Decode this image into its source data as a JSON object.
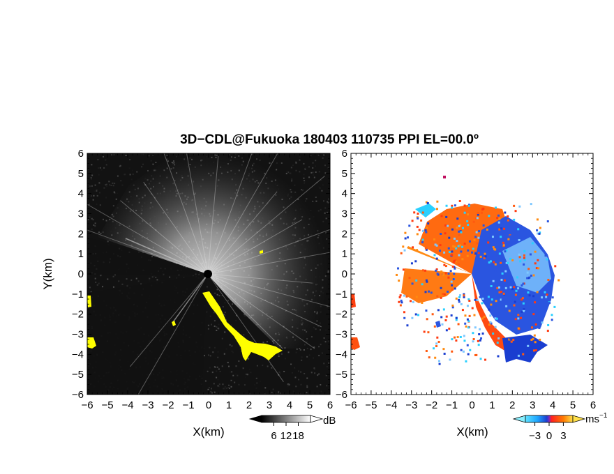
{
  "title": "3D−CDL@Fukuoka 180403 110735 PPI EL=00.0º",
  "chart_data": [
    {
      "type": "heatmap",
      "panel": "reflectivity",
      "xlabel": "X(km)",
      "ylabel": "Y(km)",
      "xlim": [
        -6,
        6
      ],
      "ylim": [
        -6,
        6
      ],
      "x_ticks": [
        "−6",
        "−5",
        "−4",
        "−3",
        "−2",
        "−1",
        "0",
        "1",
        "2",
        "3",
        "4",
        "5",
        "6"
      ],
      "y_ticks": [
        "−6",
        "−5",
        "−4",
        "−3",
        "−2",
        "−1",
        "0",
        "1",
        "2",
        "3",
        "4",
        "5",
        "6"
      ],
      "x_tick_values": [
        -6,
        -5,
        -4,
        -3,
        -2,
        -1,
        0,
        1,
        2,
        3,
        4,
        5,
        6
      ],
      "y_tick_values": [
        -6,
        -5,
        -4,
        -3,
        -2,
        -1,
        0,
        1,
        2,
        3,
        4,
        5,
        6
      ],
      "colorbar": {
        "unit": "dB",
        "ticks": [
          "6",
          "12",
          "18"
        ],
        "tick_values": [
          6,
          12,
          18
        ],
        "range": [
          0,
          24
        ]
      },
      "colors": {
        "background": "#111111",
        "echo_high": "#f0f0f0",
        "highlight": "#ffff00"
      }
    },
    {
      "type": "heatmap",
      "panel": "doppler_velocity",
      "xlabel": "X(km)",
      "ylabel": "",
      "xlim": [
        -6,
        6
      ],
      "ylim": [
        -6,
        6
      ],
      "x_ticks": [
        "−6",
        "−5",
        "−4",
        "−3",
        "−2",
        "−1",
        "0",
        "1",
        "2",
        "3",
        "4",
        "5",
        "6"
      ],
      "x_tick_values": [
        -6,
        -5,
        -4,
        -3,
        -2,
        -1,
        0,
        1,
        2,
        3,
        4,
        5,
        6
      ],
      "colorbar": {
        "unit": "ms",
        "unit_exp": "−1",
        "ticks": [
          "−3",
          "0",
          "3"
        ],
        "tick_values": [
          -3,
          0,
          3
        ],
        "range": [
          -5,
          5
        ]
      },
      "colors": {
        "background": "#ffffff",
        "approach": "#1e4fd8",
        "recede": "#ff5a10",
        "near_zero": "#b0e8ff"
      }
    }
  ]
}
